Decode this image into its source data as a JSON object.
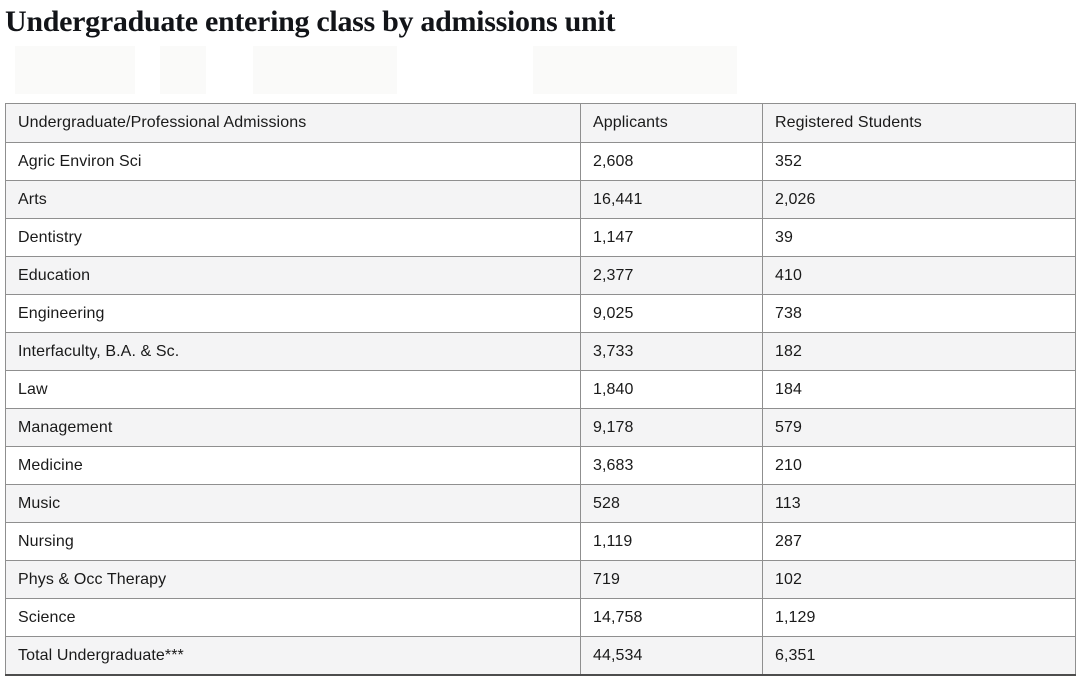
{
  "page": {
    "title": "Undergraduate entering class by admissions unit"
  },
  "colors": {
    "background": "#ffffff",
    "text": "#1a1a1a",
    "title_text": "#121418",
    "stripe_row": "#f4f4f5",
    "border": "#8f8f8f",
    "bottom_border": "#4d4d4d"
  },
  "chart_data": {
    "type": "table",
    "title": "Undergraduate entering class by admissions unit",
    "columns": [
      "Undergraduate/Professional Admissions",
      "Applicants",
      "Registered Students"
    ],
    "rows": [
      [
        "Agric Environ Sci",
        "2,608",
        "352"
      ],
      [
        "Arts",
        "16,441",
        "2,026"
      ],
      [
        "Dentistry",
        "1,147",
        "39"
      ],
      [
        "Education",
        "2,377",
        "410"
      ],
      [
        "Engineering",
        "9,025",
        "738"
      ],
      [
        "Interfaculty, B.A. & Sc.",
        "3,733",
        "182"
      ],
      [
        "Law",
        "1,840",
        "184"
      ],
      [
        "Management",
        "9,178",
        "579"
      ],
      [
        "Medicine",
        "3,683",
        "210"
      ],
      [
        "Music",
        "528",
        "113"
      ],
      [
        "Nursing",
        "1,119",
        "287"
      ],
      [
        "Phys & Occ Therapy",
        "719",
        "102"
      ],
      [
        "Science",
        "14,758",
        "1,129"
      ],
      [
        "Total Undergraduate***",
        "44,534",
        "6,351"
      ]
    ],
    "series": [
      {
        "name": "Applicants",
        "values": [
          2608,
          16441,
          1147,
          2377,
          9025,
          3733,
          1840,
          9178,
          3683,
          528,
          1119,
          719,
          14758,
          44534
        ]
      },
      {
        "name": "Registered Students",
        "values": [
          352,
          2026,
          39,
          410,
          738,
          182,
          184,
          579,
          210,
          113,
          287,
          102,
          1129,
          6351
        ]
      }
    ],
    "categories": [
      "Agric Environ Sci",
      "Arts",
      "Dentistry",
      "Education",
      "Engineering",
      "Interfaculty, B.A. & Sc.",
      "Law",
      "Management",
      "Medicine",
      "Music",
      "Nursing",
      "Phys & Occ Therapy",
      "Science",
      "Total Undergraduate***"
    ],
    "total_row_label": "Total Undergraduate***",
    "layout": {
      "striped": true,
      "header_background": "#f4f4f5",
      "grid": true
    }
  }
}
